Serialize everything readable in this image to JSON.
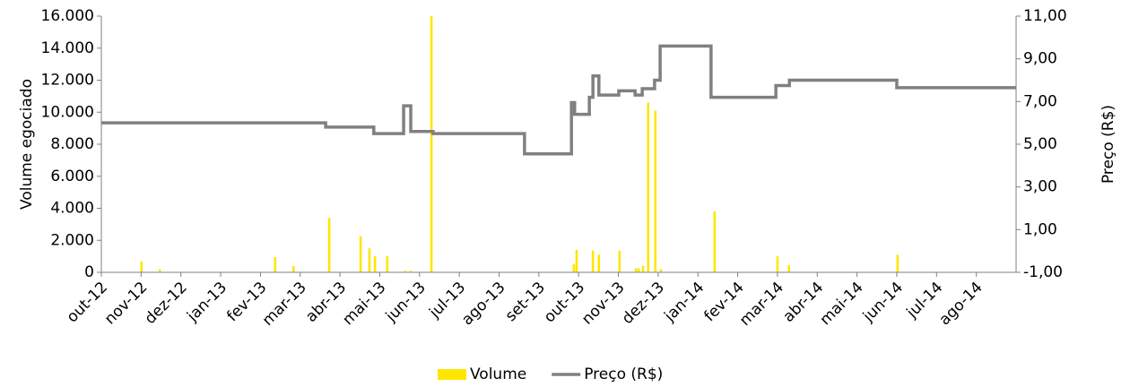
{
  "chart_data": {
    "type": "bar-line",
    "ylabel": "Volume egociado",
    "y2label": "Preço (R$)",
    "xlim": [
      0,
      23
    ],
    "xticks": [
      {
        "value": 0,
        "label": "out-12"
      },
      {
        "value": 1,
        "label": "nov-12"
      },
      {
        "value": 2,
        "label": "dez-12"
      },
      {
        "value": 3,
        "label": "jan-13"
      },
      {
        "value": 4,
        "label": "fev-13"
      },
      {
        "value": 5,
        "label": "mar-13"
      },
      {
        "value": 6,
        "label": "abr-13"
      },
      {
        "value": 7,
        "label": "mai-13"
      },
      {
        "value": 8,
        "label": "jun-13"
      },
      {
        "value": 9,
        "label": "jul-13"
      },
      {
        "value": 10,
        "label": "ago-13"
      },
      {
        "value": 11,
        "label": "set-13"
      },
      {
        "value": 12,
        "label": "out-13"
      },
      {
        "value": 13,
        "label": "nov-13"
      },
      {
        "value": 14,
        "label": "dez-13"
      },
      {
        "value": 15,
        "label": "jan-14"
      },
      {
        "value": 16,
        "label": "fev-14"
      },
      {
        "value": 17,
        "label": "mar-14"
      },
      {
        "value": 18,
        "label": "abr-14"
      },
      {
        "value": 19,
        "label": "mai-14"
      },
      {
        "value": 20,
        "label": "jun-14"
      },
      {
        "value": 21,
        "label": "jul-14"
      },
      {
        "value": 22,
        "label": "ago-14"
      }
    ],
    "ylim": [
      0,
      16000
    ],
    "yticks": [
      0,
      {
        "value": 2000,
        "label": "2.000"
      },
      {
        "value": 4000,
        "label": "4.000"
      },
      {
        "value": 6000,
        "label": "6.000"
      },
      {
        "value": 8000,
        "label": "8.000"
      },
      {
        "value": 10000,
        "label": "10.000"
      },
      {
        "value": 12000,
        "label": "12.000"
      },
      {
        "value": 14000,
        "label": "14.000"
      },
      {
        "value": 16000,
        "label": "16.000"
      }
    ],
    "y2lim": [
      -1,
      11
    ],
    "y2ticks": [
      {
        "value": -1,
        "label": "-1,00"
      },
      {
        "value": 1,
        "label": "1,00"
      },
      {
        "value": 3,
        "label": "3,00"
      },
      {
        "value": 5,
        "label": "5,00"
      },
      {
        "value": 7,
        "label": "7,00"
      },
      {
        "value": 9,
        "label": "9,00"
      },
      {
        "value": 11,
        "label": "11,00"
      }
    ],
    "legend": "bottom",
    "series": [
      {
        "name": "Volume",
        "color": "#ffe600",
        "kind": "bar",
        "axis": "y",
        "x": [
          1.01,
          1.47,
          4.37,
          4.83,
          5.73,
          6.52,
          6.74,
          6.88,
          7.19,
          7.64,
          7.78,
          8.3,
          11.88,
          11.95,
          12.36,
          12.51,
          13.03,
          13.44,
          13.51,
          13.62,
          13.75,
          13.93,
          14.07,
          15.42,
          17.0,
          17.29,
          20.02
        ],
        "values": [
          670,
          200,
          950,
          400,
          3400,
          2250,
          1500,
          1000,
          1000,
          100,
          100,
          16000,
          500,
          1400,
          1350,
          1100,
          1350,
          250,
          250,
          400,
          10600,
          10100,
          200,
          3800,
          1000,
          450,
          1100
        ]
      },
      {
        "name": "Preço (R$)",
        "color": "#808080",
        "kind": "line",
        "axis": "y2",
        "x": [
          0,
          5.64,
          5.64,
          6.85,
          6.85,
          7.6,
          7.6,
          7.78,
          7.78,
          8.34,
          8.34,
          10.64,
          10.64,
          11.82,
          11.82,
          11.9,
          11.9,
          12.27,
          12.27,
          12.36,
          12.36,
          12.51,
          12.51,
          13.01,
          13.01,
          13.42,
          13.42,
          13.6,
          13.6,
          13.91,
          13.91,
          14.05,
          14.05,
          15.33,
          15.33,
          16.96,
          16.96,
          17.3,
          17.3,
          20.0,
          20.0,
          23
        ],
        "values": [
          6.0,
          6.0,
          5.8,
          5.8,
          5.5,
          5.5,
          6.8,
          6.8,
          5.6,
          5.6,
          5.5,
          5.5,
          4.55,
          4.55,
          6.95,
          6.95,
          6.4,
          6.4,
          7.2,
          7.2,
          8.2,
          8.2,
          7.3,
          7.3,
          7.5,
          7.5,
          7.3,
          7.3,
          7.6,
          7.6,
          8.0,
          8.0,
          9.6,
          9.6,
          7.2,
          7.2,
          7.75,
          7.75,
          8.0,
          8.0,
          7.65,
          7.65
        ]
      }
    ]
  }
}
